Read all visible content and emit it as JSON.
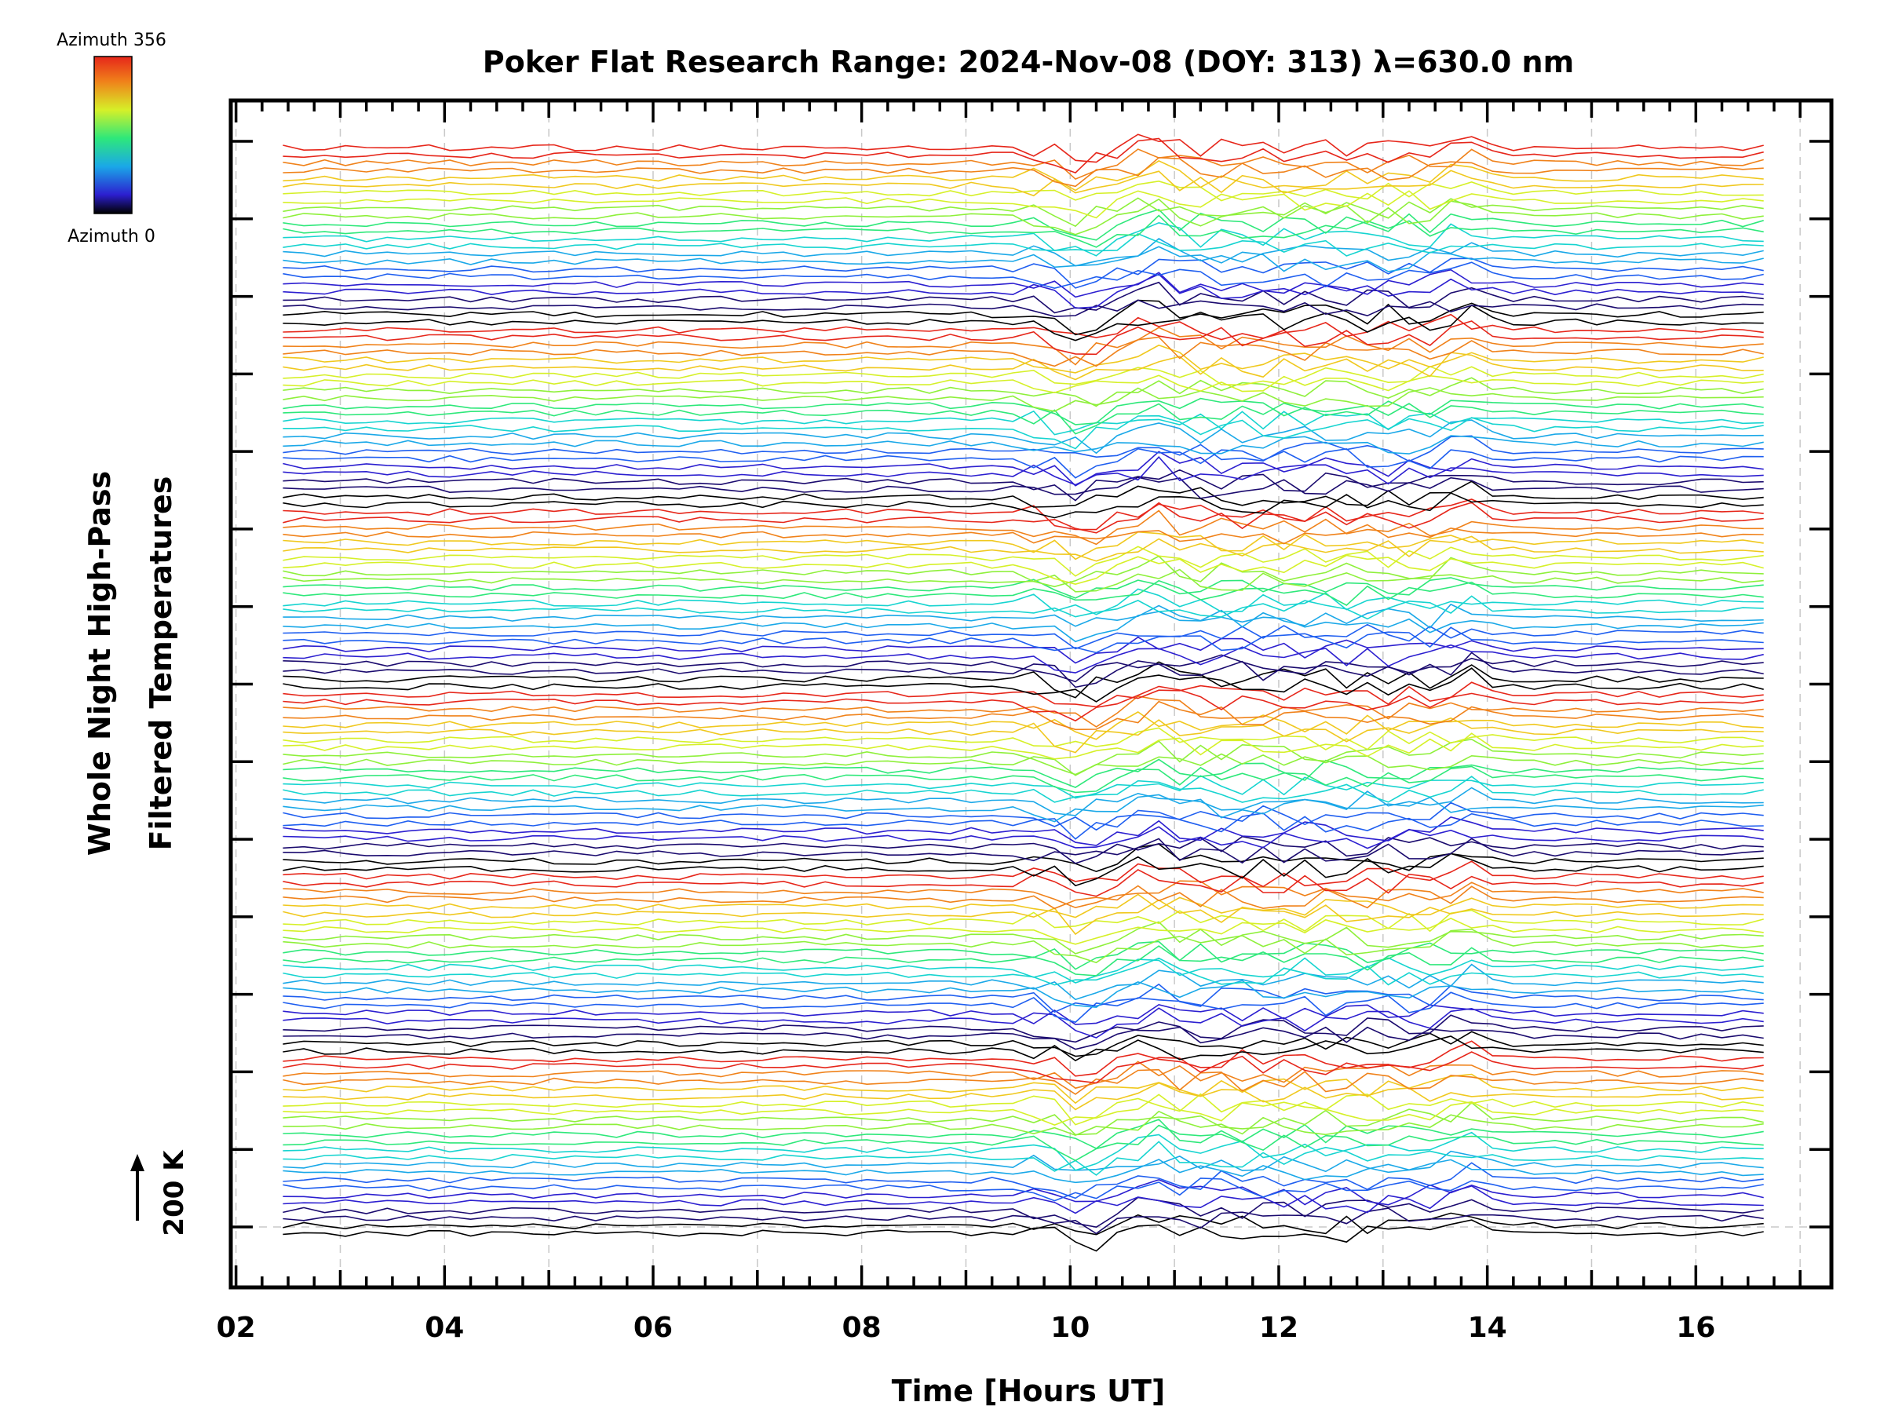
{
  "chart_data": {
    "type": "line",
    "title": "Poker Flat Research Range: 2024-Nov-08 (DOY: 313) λ=630.0 nm",
    "xlabel": "Time [Hours UT]",
    "ylabel_line1": "Whole Night High-Pass",
    "ylabel_line2": "Filtered Temperatures",
    "scale_label": "200 K",
    "x_ticks": [
      "02",
      "04",
      "06",
      "08",
      "10",
      "12",
      "14",
      "16"
    ],
    "x_tick_values": [
      2,
      4,
      6,
      8,
      10,
      12,
      14,
      16
    ],
    "xlim": [
      1.95,
      17.3
    ],
    "x_start": 2.45,
    "x_end": 16.75,
    "x_step": 0.2,
    "n_traces": 144,
    "traces_per_group": 24,
    "y_tick_count": 15,
    "colorbar": {
      "top_label": "Azimuth 356",
      "bottom_label": "Azimuth 0",
      "min": 0,
      "max": 356
    },
    "disturbance_windows_hours": [
      [
        9.6,
        10.3
      ],
      [
        10.6,
        14.0
      ]
    ],
    "colors": {
      "azimuth_palette": [
        "#000000",
        "#1a0a6e",
        "#2c1fd0",
        "#1f5ff0",
        "#1aa8e8",
        "#16d4d0",
        "#2ee87a",
        "#8ef03a",
        "#d6f028",
        "#f0c81e",
        "#f0821a",
        "#e6261a"
      ],
      "axis": "#000000",
      "grid": "#c8c8c8"
    }
  }
}
